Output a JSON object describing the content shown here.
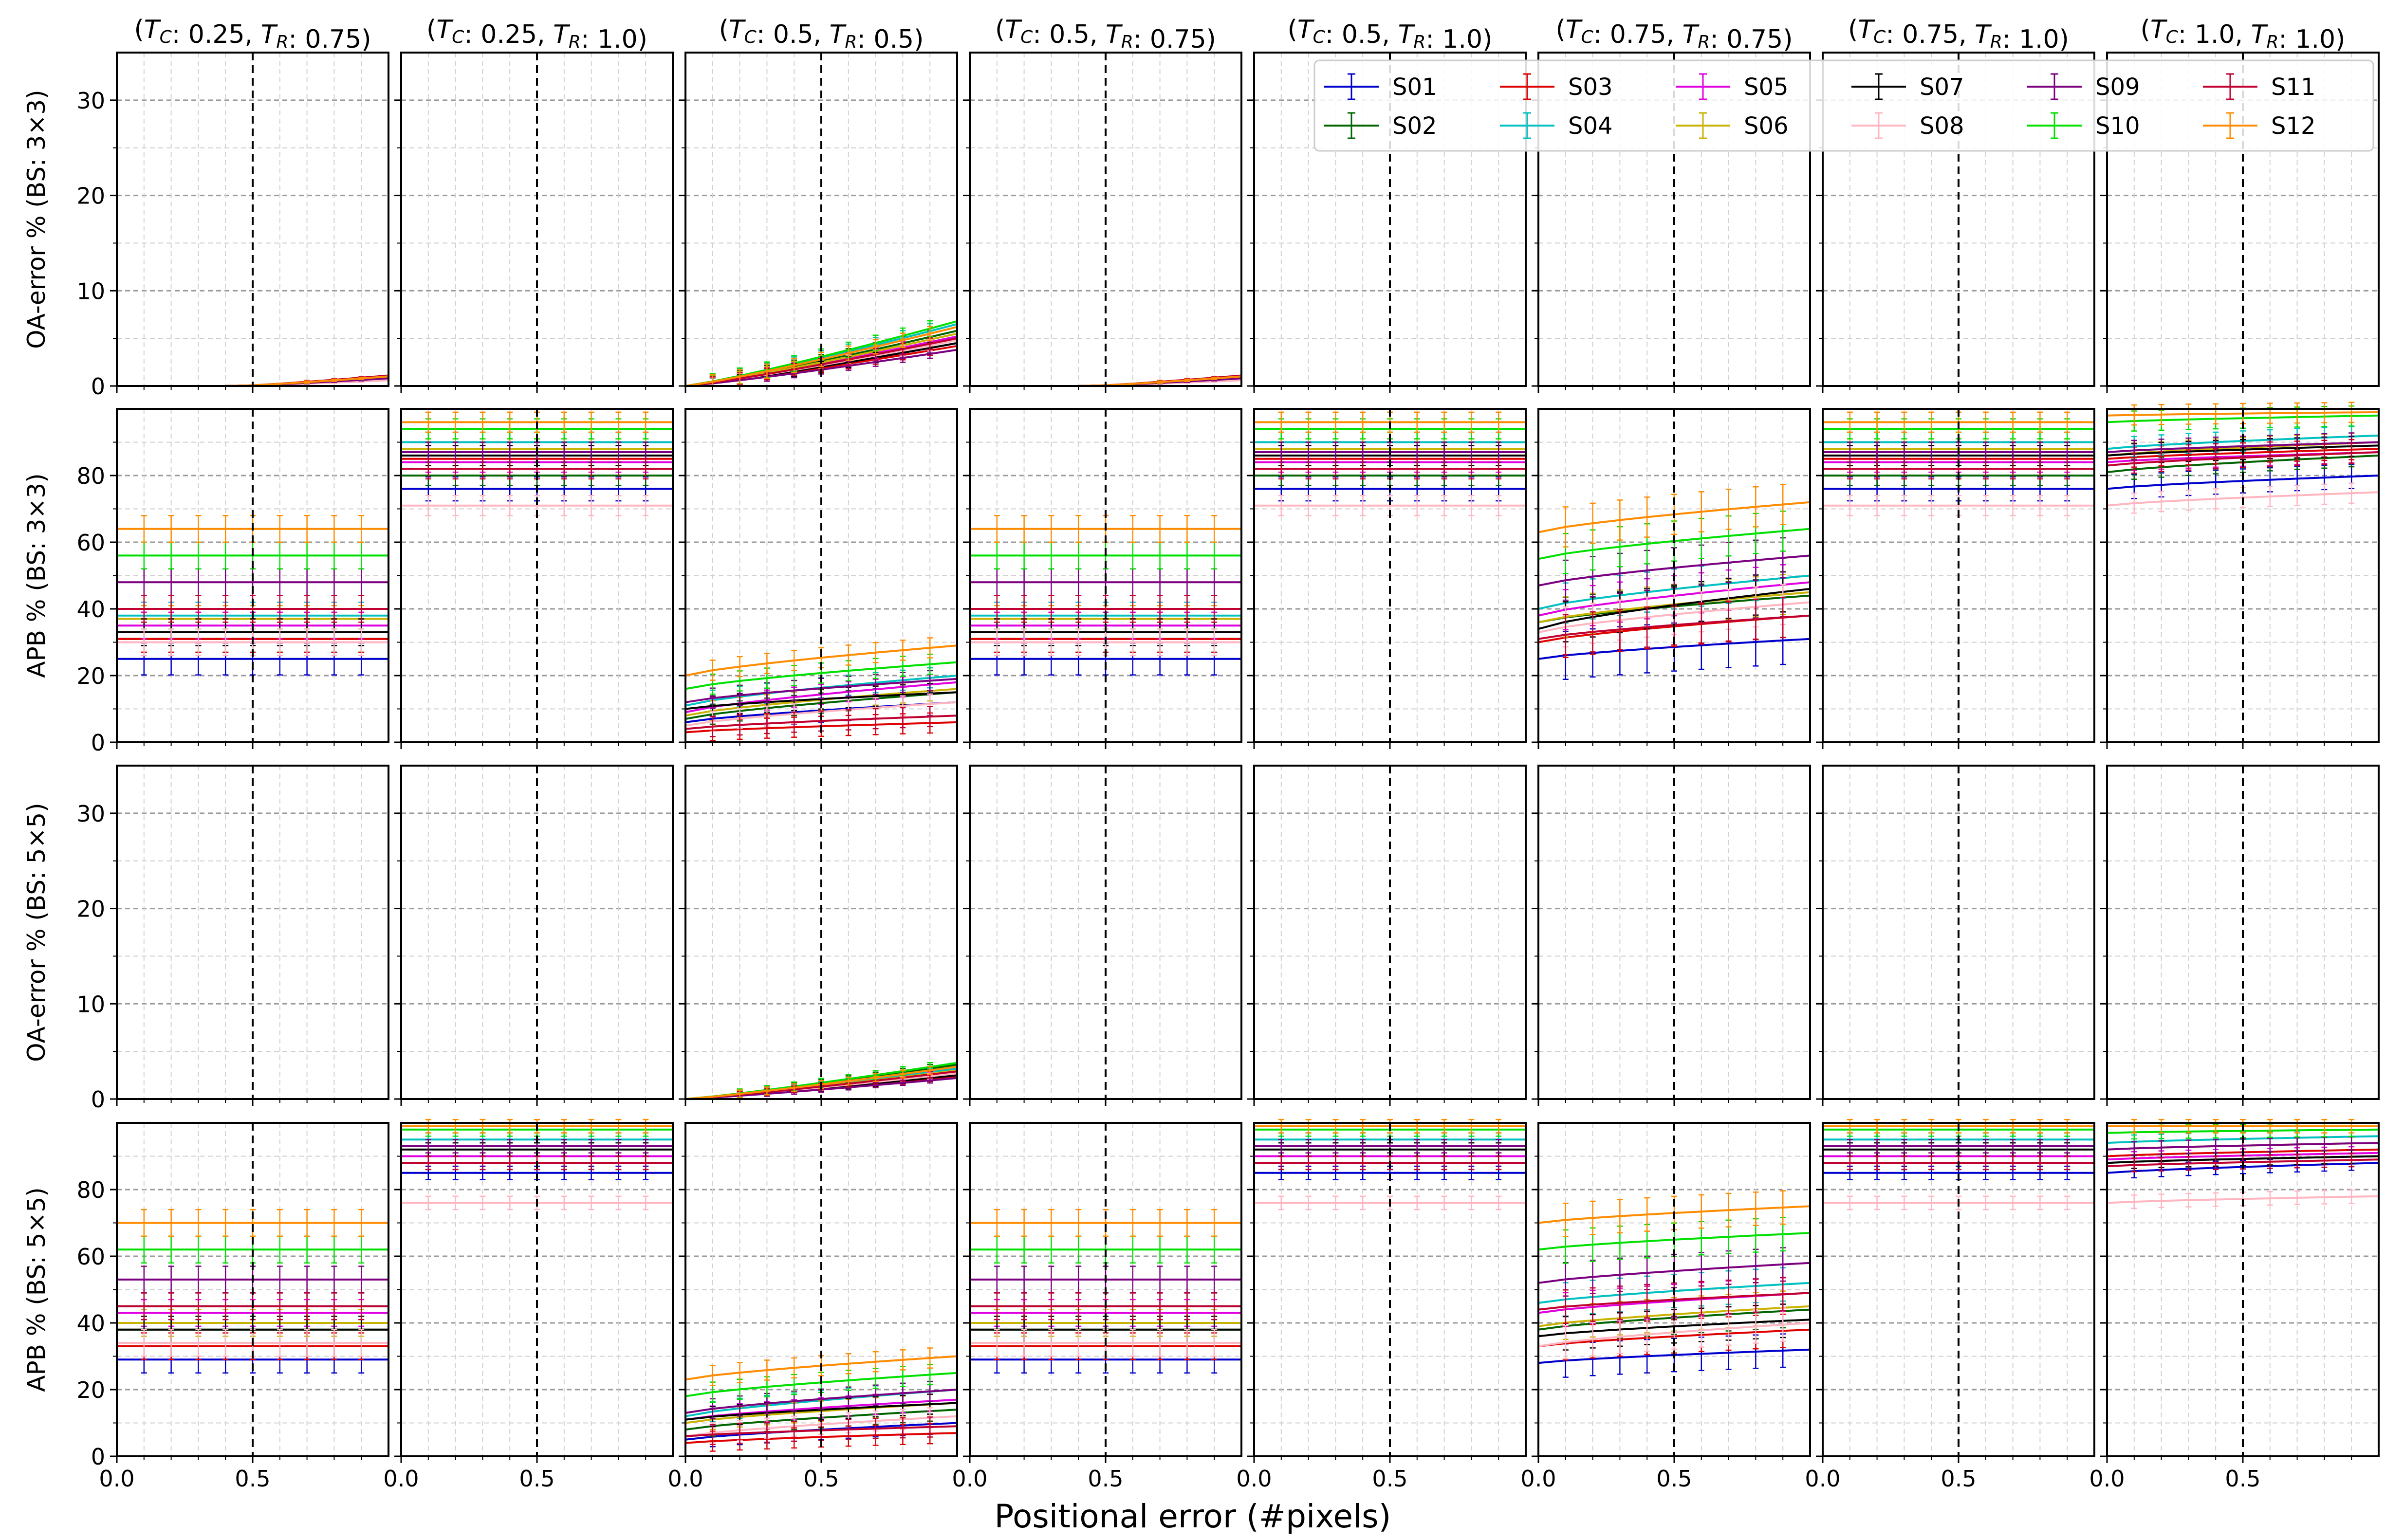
{
  "figure": {
    "xlabel": "Positional error (#pixels)"
  },
  "chart_data": {
    "type": "line",
    "columns": [
      {
        "tc": "0.25",
        "tr": "0.75"
      },
      {
        "tc": "0.25",
        "tr": "1.0"
      },
      {
        "tc": "0.5",
        "tr": "0.5"
      },
      {
        "tc": "0.5",
        "tr": "0.75"
      },
      {
        "tc": "0.5",
        "tr": "1.0"
      },
      {
        "tc": "0.75",
        "tr": "0.75"
      },
      {
        "tc": "0.75",
        "tr": "1.0"
      },
      {
        "tc": "1.0",
        "tr": "1.0"
      }
    ],
    "rows": [
      {
        "ylabel": "OA-error % (BS: 3×3)",
        "kind": "oa",
        "ylim": [
          0,
          35
        ],
        "yticks": [
          0,
          10,
          20,
          30
        ]
      },
      {
        "ylabel": "APB % (BS: 3×3)",
        "kind": "apb",
        "ylim": [
          0,
          100
        ],
        "yticks": [
          0,
          20,
          40,
          60,
          80
        ]
      },
      {
        "ylabel": "OA-error % (BS: 5×5)",
        "kind": "oa",
        "ylim": [
          0,
          35
        ],
        "yticks": [
          0,
          10,
          20,
          30
        ]
      },
      {
        "ylabel": "APB % (BS: 5×5)",
        "kind": "apb",
        "ylim": [
          0,
          100
        ],
        "yticks": [
          0,
          20,
          40,
          60,
          80
        ]
      }
    ],
    "xlim": [
      0,
      1.0
    ],
    "xticks": [
      0.0,
      0.5
    ],
    "x": [
      0.0,
      0.1,
      0.2,
      0.3,
      0.4,
      0.5,
      0.6,
      0.7,
      0.8,
      0.9,
      1.0
    ],
    "marker_x": 0.5,
    "grid": true,
    "legend_position": "top-right",
    "series": [
      {
        "name": "S01",
        "color": "#0000cc"
      },
      {
        "name": "S02",
        "color": "#006400"
      },
      {
        "name": "S03",
        "color": "#e00000"
      },
      {
        "name": "S04",
        "color": "#00c0c0"
      },
      {
        "name": "S05",
        "color": "#e000e0"
      },
      {
        "name": "S06",
        "color": "#c8b400"
      },
      {
        "name": "S07",
        "color": "#000000"
      },
      {
        "name": "S08",
        "color": "#ffb6c1"
      },
      {
        "name": "S09",
        "color": "#7b0080"
      },
      {
        "name": "S10",
        "color": "#00e000"
      },
      {
        "name": "S11",
        "color": "#c00030"
      },
      {
        "name": "S12",
        "color": "#ff8c00"
      }
    ],
    "oa_end_values": {
      "note_units": "percent at x=1.0, zero at x=0",
      "row0": [
        [
          0.7,
          0.8,
          0.9,
          0.8,
          0.7,
          0.9,
          1.0,
          0.6,
          0.8,
          1.0,
          1.1,
          1.0
        ],
        [
          0,
          0,
          0,
          0,
          0,
          0,
          0,
          0,
          0,
          0,
          0,
          0
        ],
        [
          4.5,
          5.8,
          4.2,
          6.5,
          5.2,
          5.5,
          4.5,
          4.8,
          3.8,
          6.8,
          5.0,
          6.2
        ],
        [
          0.7,
          0.8,
          0.9,
          0.8,
          0.7,
          0.9,
          1.0,
          0.6,
          0.8,
          1.0,
          1.1,
          1.0
        ],
        [
          0,
          0,
          0,
          0,
          0,
          0,
          0,
          0,
          0,
          0,
          0,
          0
        ],
        [
          0,
          0,
          0,
          0,
          0,
          0,
          0,
          0,
          0,
          0,
          0,
          0
        ],
        [
          0,
          0,
          0,
          0,
          0,
          0,
          0,
          0,
          0,
          0,
          0,
          0
        ],
        [
          0,
          0,
          0,
          0,
          0,
          0,
          0,
          0,
          0,
          0,
          0,
          0
        ]
      ],
      "row2": [
        [
          0,
          0,
          0,
          0,
          0,
          0,
          0,
          0,
          0,
          0,
          0,
          0
        ],
        [
          0,
          0,
          0,
          0,
          0,
          0,
          0,
          0,
          0,
          0,
          0,
          0
        ],
        [
          2.6,
          3.6,
          2.4,
          3.2,
          2.8,
          3.0,
          2.5,
          2.7,
          2.2,
          3.8,
          2.9,
          3.4
        ],
        [
          0,
          0,
          0,
          0,
          0,
          0,
          0,
          0,
          0,
          0,
          0,
          0
        ],
        [
          0,
          0,
          0,
          0,
          0,
          0,
          0,
          0,
          0,
          0,
          0,
          0
        ],
        [
          0,
          0,
          0,
          0,
          0,
          0,
          0,
          0,
          0,
          0,
          0,
          0
        ],
        [
          0,
          0,
          0,
          0,
          0,
          0,
          0,
          0,
          0,
          0,
          0,
          0
        ],
        [
          0,
          0,
          0,
          0,
          0,
          0,
          0,
          0,
          0,
          0,
          0,
          0
        ]
      ]
    },
    "apb_values": {
      "note_units": "percent at x=0 and at x=1.0; error bar half-width",
      "row1": [
        {
          "start": [
            25,
            31,
            31,
            38,
            35,
            37,
            33,
            30,
            48,
            56,
            40,
            64
          ],
          "end": [
            25,
            31,
            31,
            38,
            35,
            37,
            33,
            30,
            48,
            56,
            40,
            64
          ],
          "err": 4
        },
        {
          "start": [
            76,
            80,
            85,
            90,
            84,
            88,
            86,
            71,
            87,
            94,
            82,
            96
          ],
          "end": [
            76,
            80,
            85,
            90,
            84,
            88,
            86,
            71,
            87,
            94,
            82,
            96
          ],
          "err": 3
        },
        {
          "start": [
            6,
            7,
            3,
            11,
            9,
            8,
            10,
            5,
            12,
            16,
            4,
            20
          ],
          "end": [
            12,
            15,
            6,
            20,
            18,
            16,
            15,
            12,
            19,
            24,
            8,
            29
          ],
          "err": 3
        },
        {
          "start": [
            25,
            31,
            31,
            38,
            35,
            37,
            33,
            30,
            48,
            56,
            40,
            64
          ],
          "end": [
            25,
            31,
            31,
            38,
            35,
            37,
            33,
            30,
            48,
            56,
            40,
            64
          ],
          "err": 4
        },
        {
          "start": [
            76,
            80,
            85,
            90,
            84,
            88,
            86,
            71,
            87,
            94,
            82,
            96
          ],
          "end": [
            76,
            80,
            85,
            90,
            84,
            88,
            86,
            71,
            87,
            94,
            82,
            96
          ],
          "err": 3
        },
        {
          "start": [
            25,
            36,
            30,
            40,
            38,
            36,
            34,
            33,
            47,
            55,
            31,
            63
          ],
          "end": [
            31,
            44,
            38,
            50,
            48,
            45,
            46,
            42,
            56,
            64,
            38,
            72
          ],
          "err": 6
        },
        {
          "start": [
            76,
            80,
            85,
            90,
            84,
            88,
            86,
            71,
            87,
            94,
            82,
            96
          ],
          "end": [
            76,
            80,
            85,
            90,
            84,
            88,
            86,
            71,
            87,
            94,
            82,
            96
          ],
          "err": 3
        },
        {
          "start": [
            76,
            81,
            85,
            88,
            84,
            86,
            86,
            71,
            87,
            96,
            83,
            98
          ],
          "end": [
            80,
            86,
            88,
            92,
            87,
            90,
            89,
            75,
            90,
            98,
            87,
            99
          ],
          "err": 3
        }
      ],
      "row3": [
        {
          "start": [
            29,
            38,
            33,
            45,
            43,
            40,
            38,
            34,
            53,
            62,
            45,
            70
          ],
          "end": [
            29,
            38,
            33,
            45,
            43,
            40,
            38,
            34,
            53,
            62,
            45,
            70
          ],
          "err": 4
        },
        {
          "start": [
            85,
            88,
            90,
            95,
            90,
            93,
            92,
            76,
            93,
            98,
            88,
            99
          ],
          "end": [
            85,
            88,
            90,
            95,
            90,
            93,
            92,
            76,
            93,
            98,
            88,
            99
          ],
          "err": 2
        },
        {
          "start": [
            5,
            8,
            4,
            12,
            11,
            10,
            11,
            6,
            13,
            18,
            6,
            23
          ],
          "end": [
            10,
            14,
            7,
            20,
            17,
            16,
            16,
            12,
            20,
            25,
            9,
            30
          ],
          "err": 3
        },
        {
          "start": [
            29,
            38,
            33,
            45,
            43,
            40,
            38,
            34,
            53,
            62,
            45,
            70
          ],
          "end": [
            29,
            38,
            33,
            45,
            43,
            40,
            38,
            34,
            53,
            62,
            45,
            70
          ],
          "err": 4
        },
        {
          "start": [
            85,
            88,
            90,
            95,
            90,
            93,
            92,
            76,
            93,
            98,
            88,
            99
          ],
          "end": [
            85,
            88,
            90,
            95,
            90,
            93,
            92,
            76,
            93,
            98,
            88,
            99
          ],
          "err": 2
        },
        {
          "start": [
            28,
            38,
            33,
            46,
            43,
            39,
            36,
            33,
            52,
            62,
            44,
            70
          ],
          "end": [
            32,
            44,
            38,
            52,
            49,
            45,
            41,
            40,
            58,
            67,
            49,
            75
          ],
          "err": 5
        },
        {
          "start": [
            85,
            88,
            90,
            95,
            90,
            93,
            92,
            76,
            93,
            98,
            88,
            99
          ],
          "end": [
            85,
            88,
            90,
            95,
            90,
            93,
            92,
            76,
            93,
            98,
            88,
            99
          ],
          "err": 2
        },
        {
          "start": [
            85,
            88,
            90,
            94,
            89,
            92,
            88,
            76,
            92,
            97,
            87,
            99
          ],
          "end": [
            88,
            90,
            92,
            96,
            91,
            94,
            90,
            78,
            94,
            98,
            89,
            99
          ],
          "err": 2
        }
      ]
    }
  }
}
